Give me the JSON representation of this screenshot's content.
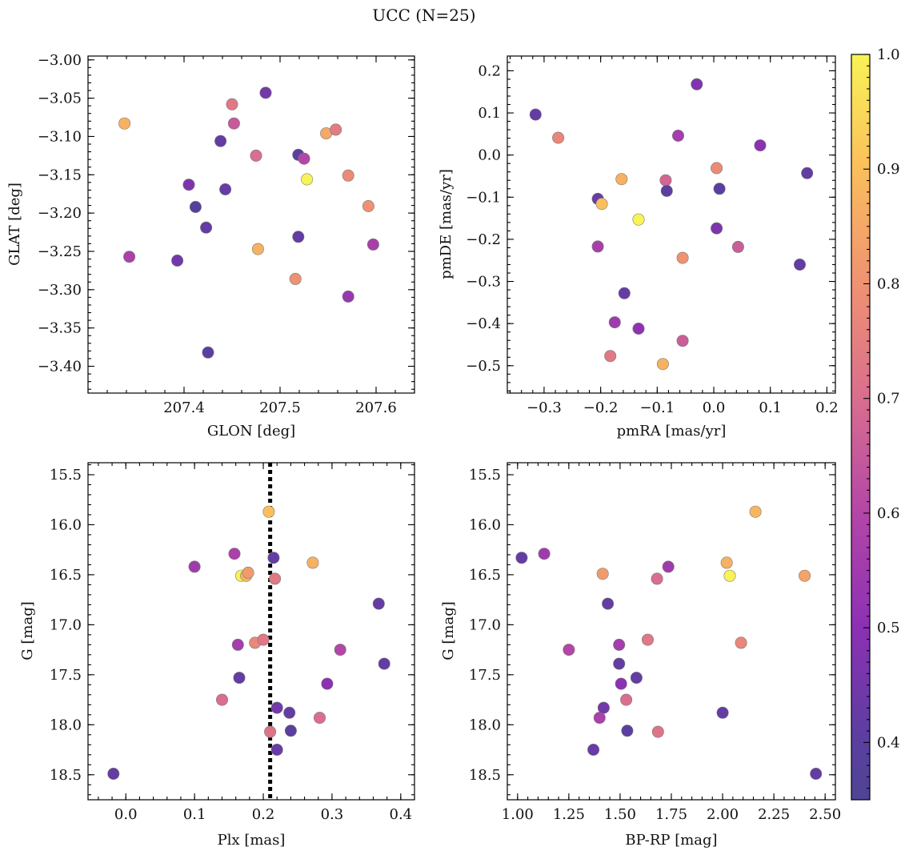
{
  "figure": {
    "title": "UCC (N=25)"
  },
  "colorbar": {
    "colormap": "plasma",
    "range": [
      0.35,
      1.0
    ],
    "ticks": [
      0.4,
      0.5,
      0.6,
      0.7,
      0.8,
      0.9,
      1.0
    ],
    "tick_labels": [
      "0.4",
      "0.5",
      "0.6",
      "0.7",
      "0.8",
      "0.9",
      "1.0"
    ]
  },
  "chart_data": [
    {
      "type": "scatter",
      "xlabel": "GLON [deg]",
      "ylabel": "GLAT [deg]",
      "xlim": [
        207.3,
        207.64
      ],
      "ylim": [
        -3.435,
        -2.995
      ],
      "y_inverted": false,
      "xticks": [
        207.4,
        207.5,
        207.6
      ],
      "xtick_labels": [
        "207.4",
        "207.5",
        "207.6"
      ],
      "yticks": [
        -3.4,
        -3.35,
        -3.3,
        -3.25,
        -3.2,
        -3.15,
        -3.1,
        -3.05,
        -3.0
      ],
      "ytick_labels": [
        "−3.40",
        "−3.35",
        "−3.30",
        "−3.25",
        "−3.20",
        "−3.15",
        "−3.10",
        "−3.05",
        "−3.00"
      ],
      "x_minor_step": 0.02,
      "y_minor_step": 0.01,
      "points": [
        {
          "x": 207.338,
          "y": -3.083,
          "c": 0.87
        },
        {
          "x": 207.343,
          "y": -3.257,
          "c": 0.58
        },
        {
          "x": 207.393,
          "y": -3.262,
          "c": 0.45
        },
        {
          "x": 207.405,
          "y": -3.163,
          "c": 0.47
        },
        {
          "x": 207.412,
          "y": -3.192,
          "c": 0.38
        },
        {
          "x": 207.423,
          "y": -3.219,
          "c": 0.42
        },
        {
          "x": 207.425,
          "y": -3.382,
          "c": 0.4
        },
        {
          "x": 207.438,
          "y": -3.106,
          "c": 0.42
        },
        {
          "x": 207.443,
          "y": -3.169,
          "c": 0.43
        },
        {
          "x": 207.45,
          "y": -3.058,
          "c": 0.73
        },
        {
          "x": 207.452,
          "y": -3.083,
          "c": 0.65
        },
        {
          "x": 207.475,
          "y": -3.125,
          "c": 0.7
        },
        {
          "x": 207.477,
          "y": -3.247,
          "c": 0.87
        },
        {
          "x": 207.485,
          "y": -3.043,
          "c": 0.45
        },
        {
          "x": 207.516,
          "y": -3.286,
          "c": 0.8
        },
        {
          "x": 207.519,
          "y": -3.124,
          "c": 0.4
        },
        {
          "x": 207.519,
          "y": -3.231,
          "c": 0.42
        },
        {
          "x": 207.525,
          "y": -3.129,
          "c": 0.6
        },
        {
          "x": 207.528,
          "y": -3.156,
          "c": 1.0
        },
        {
          "x": 207.548,
          "y": -3.096,
          "c": 0.85
        },
        {
          "x": 207.558,
          "y": -3.091,
          "c": 0.74
        },
        {
          "x": 207.571,
          "y": -3.151,
          "c": 0.78
        },
        {
          "x": 207.571,
          "y": -3.309,
          "c": 0.53
        },
        {
          "x": 207.592,
          "y": -3.191,
          "c": 0.8
        },
        {
          "x": 207.597,
          "y": -3.241,
          "c": 0.57
        }
      ]
    },
    {
      "type": "scatter",
      "xlabel": "pmRA [mas/yr]",
      "ylabel": "pmDE [mas/yr]",
      "xlim": [
        -0.365,
        0.215
      ],
      "ylim": [
        -0.565,
        0.235
      ],
      "y_inverted": false,
      "xticks": [
        -0.3,
        -0.2,
        -0.1,
        0.0,
        0.1,
        0.2
      ],
      "xtick_labels": [
        "−0.3",
        "−0.2",
        "−0.1",
        "0.0",
        "0.1",
        "0.2"
      ],
      "yticks": [
        -0.5,
        -0.4,
        -0.3,
        -0.2,
        -0.1,
        0.0,
        0.1,
        0.2
      ],
      "ytick_labels": [
        "−0.5",
        "−0.4",
        "−0.3",
        "−0.2",
        "−0.1",
        "0.0",
        "0.1",
        "0.2"
      ],
      "x_minor_step": 0.02,
      "y_minor_step": 0.02,
      "points": [
        {
          "x": -0.315,
          "y": 0.096,
          "c": 0.42
        },
        {
          "x": -0.275,
          "y": 0.041,
          "c": 0.77
        },
        {
          "x": -0.205,
          "y": -0.104,
          "c": 0.43
        },
        {
          "x": -0.205,
          "y": -0.217,
          "c": 0.57
        },
        {
          "x": -0.198,
          "y": -0.116,
          "c": 0.9
        },
        {
          "x": -0.183,
          "y": -0.477,
          "c": 0.73
        },
        {
          "x": -0.175,
          "y": -0.397,
          "c": 0.55
        },
        {
          "x": -0.163,
          "y": -0.057,
          "c": 0.87
        },
        {
          "x": -0.158,
          "y": -0.328,
          "c": 0.42
        },
        {
          "x": -0.133,
          "y": -0.153,
          "c": 1.0
        },
        {
          "x": -0.133,
          "y": -0.412,
          "c": 0.51
        },
        {
          "x": -0.09,
          "y": -0.496,
          "c": 0.87
        },
        {
          "x": -0.085,
          "y": -0.06,
          "c": 0.68
        },
        {
          "x": -0.083,
          "y": -0.085,
          "c": 0.4
        },
        {
          "x": -0.063,
          "y": 0.046,
          "c": 0.56
        },
        {
          "x": -0.055,
          "y": -0.244,
          "c": 0.8
        },
        {
          "x": -0.055,
          "y": -0.441,
          "c": 0.66
        },
        {
          "x": -0.03,
          "y": 0.168,
          "c": 0.48
        },
        {
          "x": 0.005,
          "y": -0.031,
          "c": 0.78
        },
        {
          "x": 0.005,
          "y": -0.174,
          "c": 0.47
        },
        {
          "x": 0.01,
          "y": -0.08,
          "c": 0.4
        },
        {
          "x": 0.043,
          "y": -0.218,
          "c": 0.66
        },
        {
          "x": 0.082,
          "y": 0.023,
          "c": 0.5
        },
        {
          "x": 0.152,
          "y": -0.26,
          "c": 0.42
        },
        {
          "x": 0.165,
          "y": -0.043,
          "c": 0.42
        }
      ]
    },
    {
      "type": "scatter",
      "xlabel": "Plx [mas]",
      "ylabel": "G [mag]",
      "xlim": [
        -0.055,
        0.42
      ],
      "ylim": [
        15.38,
        18.75
      ],
      "y_inverted": true,
      "xticks": [
        0.0,
        0.1,
        0.2,
        0.3,
        0.4
      ],
      "xtick_labels": [
        "0.0",
        "0.1",
        "0.2",
        "0.3",
        "0.4"
      ],
      "yticks": [
        15.5,
        16.0,
        16.5,
        17.0,
        17.5,
        18.0,
        18.5
      ],
      "ytick_labels": [
        "15.5",
        "16.0",
        "16.5",
        "17.0",
        "17.5",
        "18.0",
        "18.5"
      ],
      "x_minor_step": 0.02,
      "y_minor_step": 0.1,
      "vline": {
        "x": 0.21
      },
      "points": [
        {
          "x": -0.018,
          "y": 18.49,
          "c": 0.42
        },
        {
          "x": 0.1,
          "y": 16.42,
          "c": 0.55
        },
        {
          "x": 0.14,
          "y": 17.75,
          "c": 0.7
        },
        {
          "x": 0.158,
          "y": 16.29,
          "c": 0.58
        },
        {
          "x": 0.163,
          "y": 17.2,
          "c": 0.56
        },
        {
          "x": 0.165,
          "y": 17.53,
          "c": 0.42
        },
        {
          "x": 0.168,
          "y": 16.51,
          "c": 1.0
        },
        {
          "x": 0.175,
          "y": 16.51,
          "c": 0.88
        },
        {
          "x": 0.178,
          "y": 16.48,
          "c": 0.82
        },
        {
          "x": 0.188,
          "y": 17.18,
          "c": 0.77
        },
        {
          "x": 0.2,
          "y": 17.15,
          "c": 0.73
        },
        {
          "x": 0.208,
          "y": 15.87,
          "c": 0.9
        },
        {
          "x": 0.21,
          "y": 18.07,
          "c": 0.72
        },
        {
          "x": 0.215,
          "y": 16.33,
          "c": 0.42
        },
        {
          "x": 0.217,
          "y": 16.54,
          "c": 0.73
        },
        {
          "x": 0.22,
          "y": 17.83,
          "c": 0.45
        },
        {
          "x": 0.22,
          "y": 18.25,
          "c": 0.43
        },
        {
          "x": 0.238,
          "y": 17.88,
          "c": 0.42
        },
        {
          "x": 0.24,
          "y": 18.06,
          "c": 0.4
        },
        {
          "x": 0.272,
          "y": 16.38,
          "c": 0.87
        },
        {
          "x": 0.282,
          "y": 17.93,
          "c": 0.7
        },
        {
          "x": 0.293,
          "y": 17.59,
          "c": 0.5
        },
        {
          "x": 0.312,
          "y": 17.25,
          "c": 0.6
        },
        {
          "x": 0.368,
          "y": 16.79,
          "c": 0.42
        },
        {
          "x": 0.376,
          "y": 17.39,
          "c": 0.42
        }
      ]
    },
    {
      "type": "scatter",
      "xlabel": "BP-RP [mag]",
      "ylabel": "G [mag]",
      "xlim": [
        0.95,
        2.55
      ],
      "ylim": [
        15.38,
        18.75
      ],
      "y_inverted": true,
      "xticks": [
        1.0,
        1.25,
        1.5,
        1.75,
        2.0,
        2.25,
        2.5
      ],
      "xtick_labels": [
        "1.00",
        "1.25",
        "1.50",
        "1.75",
        "2.00",
        "2.25",
        "2.50"
      ],
      "yticks": [
        15.5,
        16.0,
        16.5,
        17.0,
        17.5,
        18.0,
        18.5
      ],
      "ytick_labels": [
        "15.5",
        "16.0",
        "16.5",
        "17.0",
        "17.5",
        "18.0",
        "18.5"
      ],
      "x_minor_step": 0.05,
      "y_minor_step": 0.1,
      "points": [
        {
          "x": 1.02,
          "y": 16.33,
          "c": 0.42
        },
        {
          "x": 1.13,
          "y": 16.29,
          "c": 0.55
        },
        {
          "x": 1.25,
          "y": 17.25,
          "c": 0.6
        },
        {
          "x": 1.37,
          "y": 18.25,
          "c": 0.43
        },
        {
          "x": 1.4,
          "y": 17.93,
          "c": 0.58
        },
        {
          "x": 1.415,
          "y": 16.49,
          "c": 0.82
        },
        {
          "x": 1.42,
          "y": 17.83,
          "c": 0.45
        },
        {
          "x": 1.44,
          "y": 16.79,
          "c": 0.42
        },
        {
          "x": 1.495,
          "y": 17.2,
          "c": 0.56
        },
        {
          "x": 1.495,
          "y": 17.39,
          "c": 0.42
        },
        {
          "x": 1.505,
          "y": 17.59,
          "c": 0.5
        },
        {
          "x": 1.53,
          "y": 17.75,
          "c": 0.7
        },
        {
          "x": 1.535,
          "y": 18.06,
          "c": 0.4
        },
        {
          "x": 1.58,
          "y": 17.53,
          "c": 0.42
        },
        {
          "x": 1.635,
          "y": 17.15,
          "c": 0.73
        },
        {
          "x": 1.68,
          "y": 16.54,
          "c": 0.7
        },
        {
          "x": 1.685,
          "y": 18.07,
          "c": 0.72
        },
        {
          "x": 1.735,
          "y": 16.42,
          "c": 0.55
        },
        {
          "x": 2.0,
          "y": 17.88,
          "c": 0.42
        },
        {
          "x": 2.02,
          "y": 16.38,
          "c": 0.87
        },
        {
          "x": 2.035,
          "y": 16.51,
          "c": 1.0
        },
        {
          "x": 2.09,
          "y": 17.18,
          "c": 0.77
        },
        {
          "x": 2.16,
          "y": 15.87,
          "c": 0.88
        },
        {
          "x": 2.4,
          "y": 16.51,
          "c": 0.84
        },
        {
          "x": 2.455,
          "y": 18.49,
          "c": 0.42
        }
      ]
    }
  ]
}
